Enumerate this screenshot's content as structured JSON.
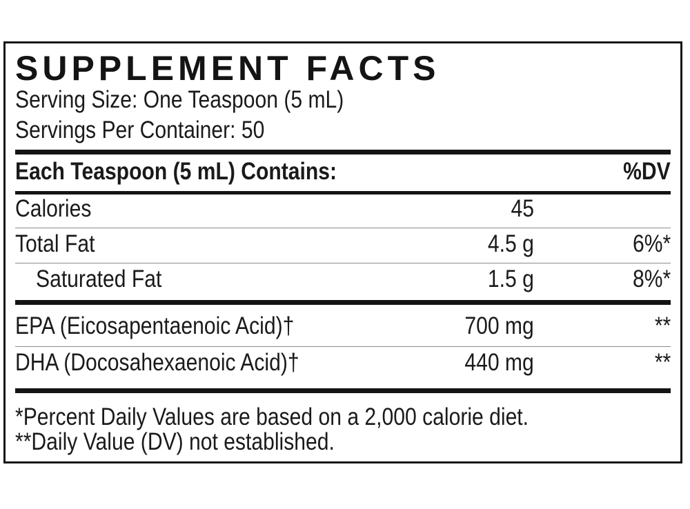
{
  "title": "SUPPLEMENT FACTS",
  "serving_size": "Serving Size: One Teaspoon (5 mL)",
  "servings_per_container": "Servings Per Container: 50",
  "header": {
    "label": "Each Teaspoon (5 mL) Contains:",
    "dv": "%DV"
  },
  "rows": [
    {
      "name": "Calories",
      "amount": "45",
      "dv": ""
    },
    {
      "name": "Total Fat",
      "amount": "4.5 g",
      "dv": "6%*"
    },
    {
      "name": "Saturated Fat",
      "amount": "1.5 g",
      "dv": "8%*"
    },
    {
      "name": "EPA (Eicosapentaenoic Acid)†",
      "amount": "700 mg",
      "dv": "**"
    },
    {
      "name": "DHA (Docosahexaenoic Acid)†",
      "amount": "440 mg",
      "dv": "**"
    }
  ],
  "footnotes": [
    "*Percent Daily Values are based on a 2,000 calorie diet.",
    "**Daily Value (DV) not established."
  ]
}
